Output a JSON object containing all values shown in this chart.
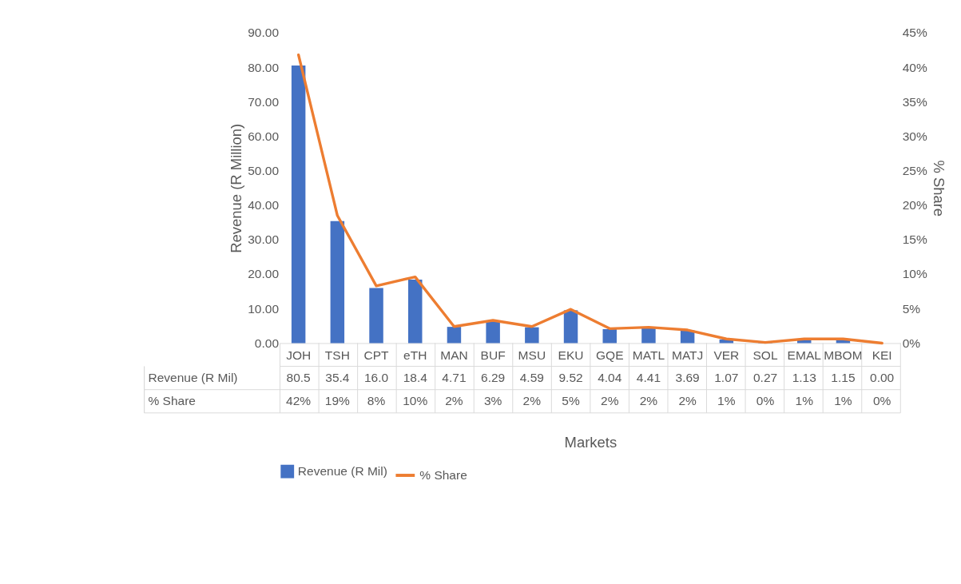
{
  "chart_data": {
    "type": "bar",
    "xlabel": "Markets",
    "ylabel": "Revenue (R Million)",
    "y2label": "% Share",
    "categories": [
      "JOH",
      "TSH",
      "CPT",
      "eTH",
      "MAN",
      "BUF",
      "MSU",
      "EKU",
      "GQE",
      "MATL",
      "MATJ",
      "VER",
      "SOL",
      "EMAL",
      "MBOM",
      "KEI"
    ],
    "series": [
      {
        "name": "Revenue (R Mil)",
        "color": "#4472c4",
        "values": [
          80.5,
          35.4,
          16.0,
          18.4,
          4.71,
          6.29,
          4.59,
          9.52,
          4.04,
          4.41,
          3.69,
          1.07,
          0.27,
          1.13,
          1.15,
          0.0
        ],
        "value_labels": [
          "80.5",
          "35.4",
          "16.0",
          "18.4",
          "4.71",
          "6.29",
          "4.59",
          "9.52",
          "4.04",
          "4.41",
          "3.69",
          "1.07",
          "0.27",
          "1.13",
          "1.15",
          "0.00"
        ]
      },
      {
        "name": "% Share",
        "type": "line",
        "axis": "y2",
        "color": "#ed7d31",
        "values": [
          41.8,
          18.5,
          8.3,
          9.6,
          2.4,
          3.3,
          2.4,
          4.9,
          2.1,
          2.3,
          1.9,
          0.6,
          0.1,
          0.6,
          0.6,
          0.0
        ],
        "value_labels": [
          "42%",
          "19%",
          "8%",
          "10%",
          "2%",
          "3%",
          "2%",
          "5%",
          "2%",
          "2%",
          "2%",
          "1%",
          "0%",
          "1%",
          "1%",
          "0%"
        ]
      }
    ],
    "ylim": [
      0,
      90
    ],
    "yticks": [
      {
        "value": 0,
        "label": "0.00"
      },
      {
        "value": 10,
        "label": "10.00"
      },
      {
        "value": 20,
        "label": "20.00"
      },
      {
        "value": 30,
        "label": "30.00"
      },
      {
        "value": 40,
        "label": "40.00"
      },
      {
        "value": 50,
        "label": "50.00"
      },
      {
        "value": 60,
        "label": "60.00"
      },
      {
        "value": 70,
        "label": "70.00"
      },
      {
        "value": 80,
        "label": "80.00"
      },
      {
        "value": 90,
        "label": "90.00"
      }
    ],
    "y2lim": [
      0,
      45
    ],
    "y2ticks": [
      {
        "value": 0,
        "label": "0%"
      },
      {
        "value": 5,
        "label": "5%"
      },
      {
        "value": 10,
        "label": "10%"
      },
      {
        "value": 15,
        "label": "15%"
      },
      {
        "value": 20,
        "label": "20%"
      },
      {
        "value": 25,
        "label": "25%"
      },
      {
        "value": 30,
        "label": "30%"
      },
      {
        "value": 35,
        "label": "35%"
      },
      {
        "value": 40,
        "label": "40%"
      },
      {
        "value": 45,
        "label": "45%"
      }
    ],
    "grid": false,
    "legend": "bottom",
    "line_style": "solid"
  }
}
